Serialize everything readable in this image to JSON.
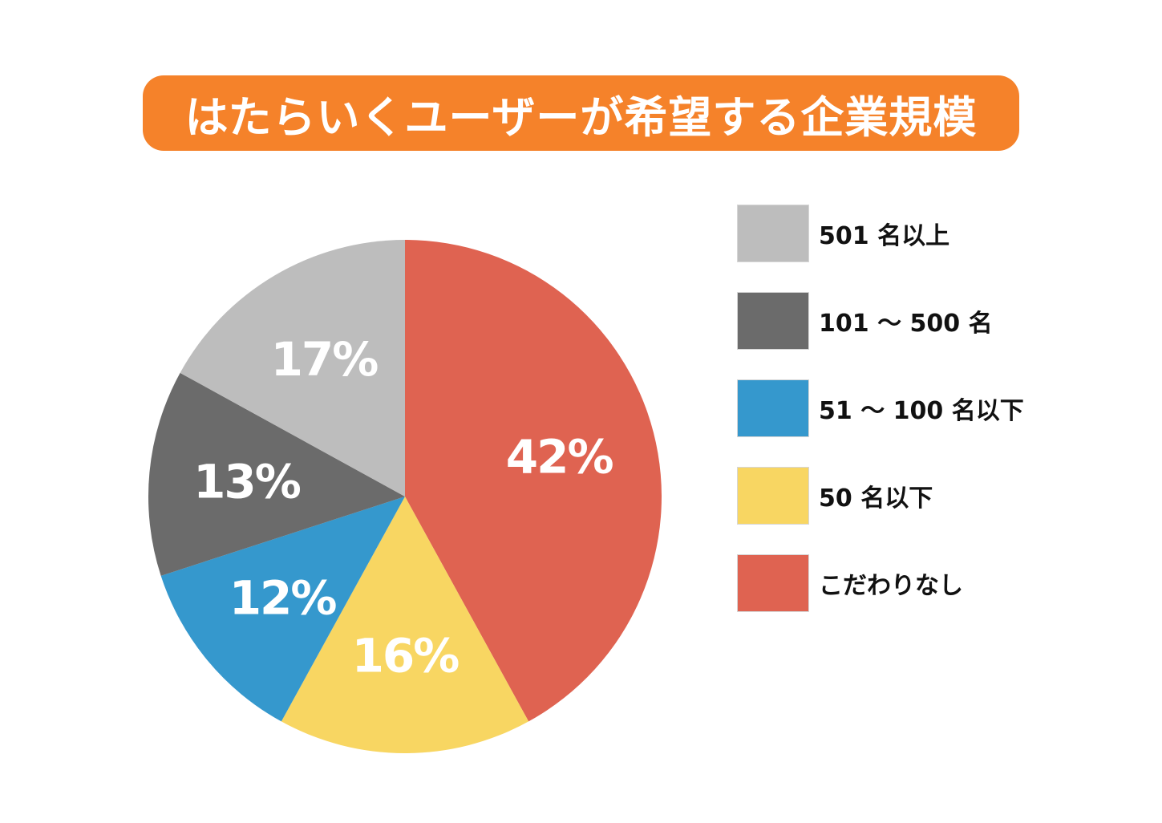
{
  "title": "はたらいくユーザーが希望する企業規模",
  "colors": {
    "title_bg": "#f5822a",
    "slice_501_plus": "#bdbdbd",
    "slice_101_500": "#6b6b6b",
    "slice_51_100": "#3598cd",
    "slice_50_less": "#f8d662",
    "slice_no_pref": "#df6351"
  },
  "chart_data": {
    "type": "pie",
    "title": "はたらいくユーザーが希望する企業規模",
    "start": "12 o'clock",
    "direction": "clockwise",
    "legend_position": "right",
    "slices": [
      {
        "label": "こだわりなし",
        "value": 42,
        "value_label": "42%",
        "color": "#df6351"
      },
      {
        "label": "50 名以下",
        "value": 16,
        "value_label": "16%",
        "color": "#f8d662"
      },
      {
        "label": "51 ～ 100 名以下",
        "value": 12,
        "value_label": "12%",
        "color": "#3598cd"
      },
      {
        "label": "101 ～ 500 名",
        "value": 13,
        "value_label": "13%",
        "color": "#6b6b6b"
      },
      {
        "label": "501 名以上",
        "value": 17,
        "value_label": "17%",
        "color": "#bdbdbd"
      }
    ]
  },
  "legend": {
    "items": [
      {
        "label": "501 名以上",
        "color": "#bdbdbd"
      },
      {
        "label": "101 ～ 500 名",
        "color": "#6b6b6b"
      },
      {
        "label": "51 ～ 100 名以下",
        "color": "#3598cd"
      },
      {
        "label": "50 名以下",
        "color": "#f8d662"
      },
      {
        "label": "こだわりなし",
        "color": "#df6351"
      }
    ]
  }
}
